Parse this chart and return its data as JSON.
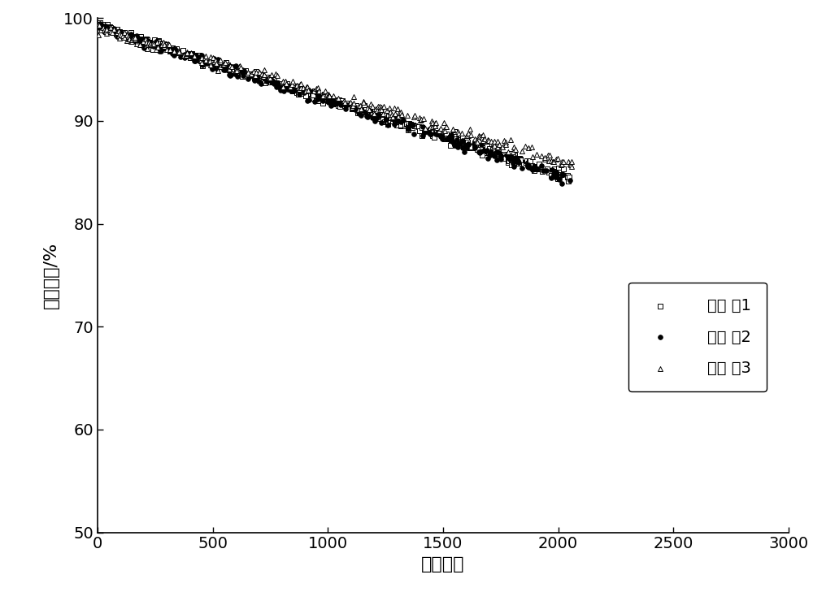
{
  "title": "",
  "xlabel": "循环次数",
  "ylabel": "剩余容量/%",
  "xlim": [
    0,
    3000
  ],
  "ylim": [
    50,
    100
  ],
  "xticks": [
    0,
    500,
    1000,
    1500,
    2000,
    2500,
    3000
  ],
  "yticks": [
    50,
    60,
    70,
    80,
    90,
    100
  ],
  "series": [
    {
      "label": "实施 例1",
      "marker": "s",
      "marker_size": 16,
      "color": "black",
      "facecolor": "white",
      "x_start": 1,
      "x_end": 2060,
      "y_start": 99.3,
      "y_end": 84.5,
      "n_points": 350
    },
    {
      "label": "实施 例2",
      "marker": "o",
      "marker_size": 16,
      "color": "black",
      "facecolor": "black",
      "x_start": 1,
      "x_end": 2060,
      "y_start": 99.2,
      "y_end": 84.3,
      "n_points": 320
    },
    {
      "label": "实施 例3",
      "marker": "^",
      "marker_size": 18,
      "color": "black",
      "facecolor": "white",
      "x_start": 1,
      "x_end": 2060,
      "y_start": 99.0,
      "y_end": 85.8,
      "n_points": 280
    }
  ],
  "background_color": "#ffffff",
  "font_size_ticks": 14,
  "font_size_labels": 16,
  "font_size_legend": 14
}
